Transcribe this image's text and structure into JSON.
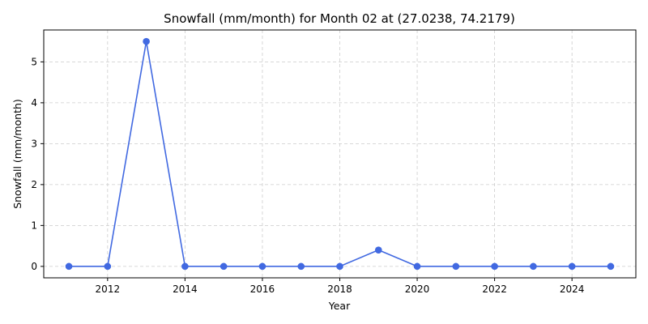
{
  "chart_data": {
    "type": "line",
    "title": "Snowfall (mm/month) for Month 02 at (27.0238, 74.2179)",
    "xlabel": "Year",
    "ylabel": "Snowfall (mm/month)",
    "xlim": [
      2010.35,
      2025.65
    ],
    "ylim": [
      -0.28,
      5.78
    ],
    "xticks": [
      2012,
      2014,
      2016,
      2018,
      2020,
      2022,
      2024
    ],
    "yticks": [
      0,
      1,
      2,
      3,
      4,
      5
    ],
    "grid": true,
    "grid_style": "dashed",
    "legend": "none",
    "series": [
      {
        "color": "#4169e1",
        "marker": "circle",
        "x": [
          2011,
          2012,
          2013,
          2014,
          2015,
          2016,
          2017,
          2018,
          2019,
          2020,
          2021,
          2022,
          2023,
          2024,
          2025
        ],
        "y": [
          0,
          0,
          5.5,
          0,
          0,
          0,
          0,
          0,
          0.4,
          0,
          0,
          0,
          0,
          0,
          0
        ]
      }
    ]
  }
}
